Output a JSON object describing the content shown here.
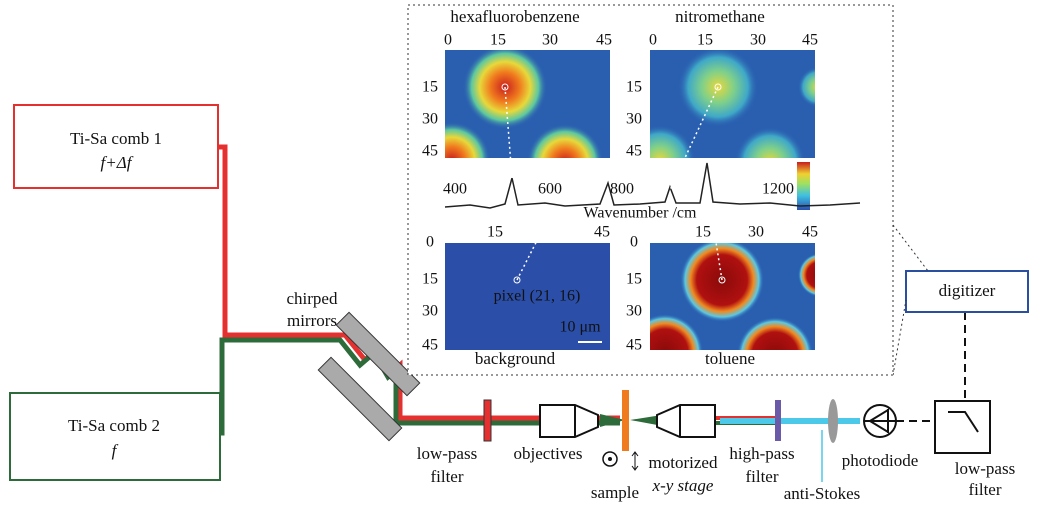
{
  "lasers": [
    {
      "name": "Ti-Sa comb 1",
      "frequency": "f+Δf"
    },
    {
      "name": "Ti-Sa comb 2",
      "frequency": "f"
    }
  ],
  "components": {
    "chirped_mirrors": [
      "chirped",
      "mirrors"
    ],
    "low_pass_filter_1": [
      "low-pass",
      "filter"
    ],
    "objectives": "objectives",
    "sample": "sample",
    "stage": [
      "motorized",
      "x-y stage"
    ],
    "high_pass_filter": [
      "high-pass",
      "filter"
    ],
    "photodiode": "photodiode",
    "anti_stokes": "anti-Stokes",
    "low_pass_filter_2": [
      "low-pass",
      "filter"
    ],
    "digitizer": "digitizer"
  },
  "inset": {
    "panels": [
      {
        "title": "hexafluorobenzene",
        "xticks": [
          "0",
          "15",
          "30",
          "45"
        ],
        "yticks": [
          "15",
          "30",
          "45"
        ]
      },
      {
        "title": "nitromethane",
        "xticks": [
          "0",
          "15",
          "30",
          "45"
        ],
        "yticks": [
          "15",
          "30",
          "45"
        ]
      },
      {
        "title": "background",
        "xticks": [
          "15",
          "45"
        ],
        "yticks": [
          "0",
          "15",
          "30",
          "45"
        ]
      },
      {
        "title": "toluene",
        "xticks": [
          "15",
          "30",
          "45"
        ],
        "yticks": [
          "0",
          "15",
          "30",
          "45"
        ]
      }
    ],
    "spectrum": {
      "xticks": [
        "400",
        "600",
        "800",
        "1200"
      ],
      "xlabel": "Wavenumber /cm"
    },
    "pixel_label": "pixel (21, 16)",
    "scale_bar": "10 μm"
  }
}
